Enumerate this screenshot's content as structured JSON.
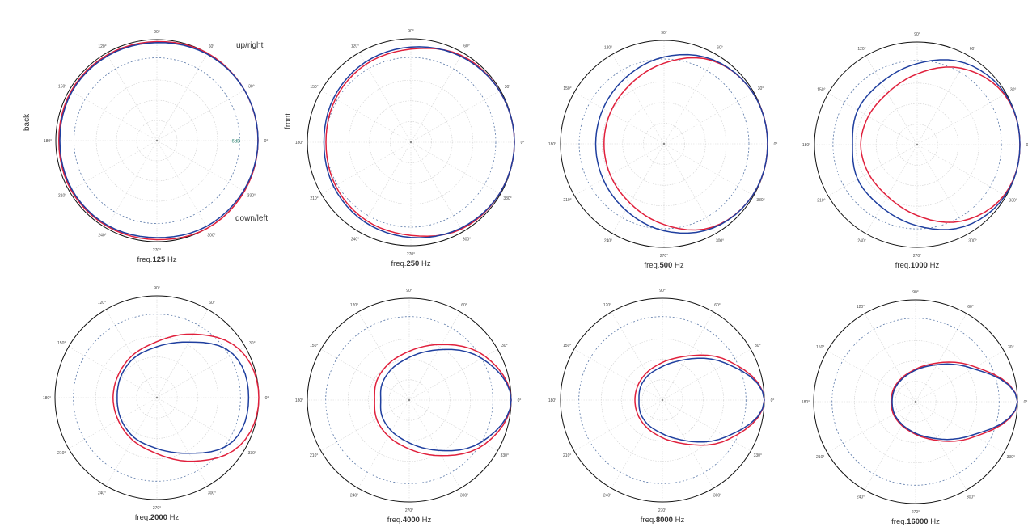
{
  "labels": {
    "up_right": "up/right",
    "down_left": "down/left",
    "back": "back",
    "front": "front",
    "ref_level": "-6dB",
    "angles": [
      "90°",
      "60°",
      "30°",
      "0°",
      "330°",
      "300°",
      "270°",
      "240°",
      "210°",
      "180°",
      "150°",
      "120°"
    ]
  },
  "colors": {
    "series_red": "#e0203c",
    "series_blue": "#1f3f9f"
  },
  "chart_data": [
    {
      "type": "polar",
      "caption_prefix": "freq.",
      "freq": "125",
      "unit": "Hz",
      "series": [
        {
          "color": "red",
          "r": [
            1,
            1,
            1,
            0.98,
            0.98,
            0.98,
            0.97,
            0.98,
            0.98,
            0.98,
            1,
            1
          ]
        },
        {
          "color": "blue",
          "r": [
            1,
            1,
            0.99,
            0.97,
            0.97,
            0.97,
            0.96,
            0.97,
            0.97,
            0.96,
            0.98,
            0.99
          ]
        }
      ]
    },
    {
      "type": "polar",
      "caption_prefix": "freq.",
      "freq": "250",
      "unit": "Hz",
      "series": [
        {
          "color": "red",
          "r": [
            1,
            0.99,
            0.97,
            0.9,
            0.87,
            0.84,
            0.82,
            0.84,
            0.87,
            0.9,
            0.97,
            0.99
          ]
        },
        {
          "color": "blue",
          "r": [
            1,
            0.99,
            0.96,
            0.92,
            0.89,
            0.86,
            0.84,
            0.86,
            0.89,
            0.92,
            0.96,
            0.99
          ]
        }
      ]
    },
    {
      "type": "polar",
      "caption_prefix": "freq.",
      "freq": "500",
      "unit": "Hz",
      "series": [
        {
          "color": "red",
          "r": [
            1,
            0.99,
            0.93,
            0.78,
            0.66,
            0.6,
            0.58,
            0.6,
            0.66,
            0.78,
            0.93,
            0.99
          ]
        },
        {
          "color": "blue",
          "r": [
            1,
            0.99,
            0.94,
            0.84,
            0.74,
            0.68,
            0.66,
            0.68,
            0.74,
            0.84,
            0.94,
            0.99
          ]
        }
      ]
    },
    {
      "type": "polar",
      "caption_prefix": "freq.",
      "freq": "1000",
      "unit": "Hz",
      "series": [
        {
          "color": "red",
          "r": [
            1,
            0.98,
            0.86,
            0.69,
            0.58,
            0.55,
            0.55,
            0.55,
            0.58,
            0.69,
            0.86,
            0.98
          ]
        },
        {
          "color": "blue",
          "r": [
            1,
            0.99,
            0.92,
            0.79,
            0.7,
            0.67,
            0.63,
            0.67,
            0.7,
            0.79,
            0.92,
            0.99
          ]
        }
      ]
    },
    {
      "type": "polar",
      "caption_prefix": "freq.",
      "freq": "2000",
      "unit": "Hz",
      "series": [
        {
          "color": "red",
          "r": [
            1,
            0.94,
            0.72,
            0.55,
            0.48,
            0.44,
            0.43,
            0.44,
            0.48,
            0.55,
            0.72,
            0.94
          ]
        },
        {
          "color": "blue",
          "r": [
            0.9,
            0.86,
            0.63,
            0.5,
            0.45,
            0.41,
            0.39,
            0.41,
            0.45,
            0.5,
            0.63,
            0.86
          ]
        }
      ]
    },
    {
      "type": "polar",
      "caption_prefix": "freq.",
      "freq": "4000",
      "unit": "Hz",
      "series": [
        {
          "color": "red",
          "r": [
            1,
            0.86,
            0.63,
            0.48,
            0.41,
            0.37,
            0.34,
            0.37,
            0.41,
            0.48,
            0.63,
            0.86
          ]
        },
        {
          "color": "blue",
          "r": [
            1,
            0.82,
            0.57,
            0.42,
            0.35,
            0.31,
            0.28,
            0.31,
            0.35,
            0.42,
            0.57,
            0.82
          ]
        }
      ]
    },
    {
      "type": "polar",
      "caption_prefix": "freq.",
      "freq": "8000",
      "unit": "Hz",
      "series": [
        {
          "color": "red",
          "r": [
            1,
            0.76,
            0.5,
            0.37,
            0.31,
            0.28,
            0.27,
            0.28,
            0.31,
            0.37,
            0.5,
            0.76
          ]
        },
        {
          "color": "blue",
          "r": [
            1,
            0.72,
            0.46,
            0.33,
            0.28,
            0.25,
            0.23,
            0.25,
            0.28,
            0.33,
            0.46,
            0.72
          ]
        }
      ]
    },
    {
      "type": "polar",
      "caption_prefix": "freq.",
      "freq": "16000",
      "unit": "Hz",
      "series": [
        {
          "color": "red",
          "r": [
            1,
            0.68,
            0.44,
            0.32,
            0.27,
            0.25,
            0.24,
            0.25,
            0.27,
            0.32,
            0.44,
            0.68
          ]
        },
        {
          "color": "blue",
          "r": [
            1,
            0.65,
            0.42,
            0.31,
            0.26,
            0.24,
            0.23,
            0.24,
            0.26,
            0.31,
            0.42,
            0.65
          ]
        }
      ]
    }
  ]
}
